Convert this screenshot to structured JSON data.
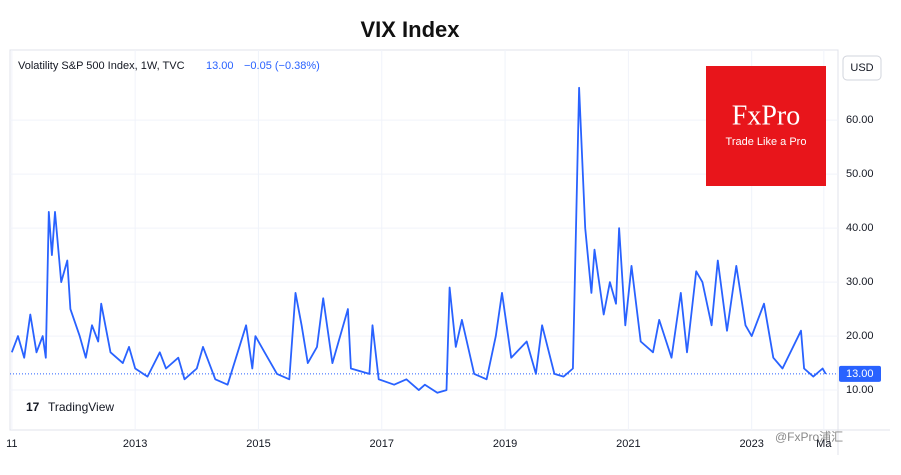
{
  "chart_data": {
    "type": "line",
    "title": "VIX Index",
    "legend_label": "Volatility S&P 500 Index, 1W, TVC",
    "legend_value": "13.00",
    "legend_change": "−0.05 (−0.38%)",
    "currency": "USD",
    "brand": "FxPro",
    "brand_tagline": "Trade Like a Pro",
    "platform": "TradingView",
    "watermark": "@FxPro浦汇",
    "x": [
      2011.0,
      2011.1,
      2011.2,
      2011.3,
      2011.4,
      2011.5,
      2011.55,
      2011.6,
      2011.65,
      2011.7,
      2011.8,
      2011.9,
      2011.95,
      2012.1,
      2012.2,
      2012.3,
      2012.4,
      2012.45,
      2012.6,
      2012.8,
      2012.9,
      2013.0,
      2013.2,
      2013.4,
      2013.5,
      2013.7,
      2013.8,
      2014.0,
      2014.1,
      2014.3,
      2014.5,
      2014.8,
      2014.9,
      2014.95,
      2015.1,
      2015.3,
      2015.5,
      2015.6,
      2015.7,
      2015.8,
      2015.95,
      2016.05,
      2016.2,
      2016.45,
      2016.5,
      2016.8,
      2016.85,
      2016.95,
      2017.2,
      2017.4,
      2017.6,
      2017.7,
      2017.9,
      2018.05,
      2018.1,
      2018.2,
      2018.3,
      2018.5,
      2018.7,
      2018.85,
      2018.95,
      2019.1,
      2019.35,
      2019.5,
      2019.6,
      2019.8,
      2019.95,
      2020.1,
      2020.15,
      2020.2,
      2020.3,
      2020.4,
      2020.45,
      2020.6,
      2020.7,
      2020.8,
      2020.85,
      2020.95,
      2021.05,
      2021.2,
      2021.4,
      2021.5,
      2021.7,
      2021.85,
      2021.95,
      2022.1,
      2022.2,
      2022.35,
      2022.45,
      2022.6,
      2022.75,
      2022.9,
      2023.0,
      2023.2,
      2023.35,
      2023.5,
      2023.8,
      2023.85,
      2024.0,
      2024.15,
      2024.2
    ],
    "series": [
      {
        "name": "Volatility S&P 500 Index",
        "color": "#2962ff",
        "values": [
          17,
          20,
          16,
          24,
          17,
          20,
          16,
          43,
          35,
          43,
          30,
          34,
          25,
          20,
          16,
          22,
          19,
          26,
          17,
          15,
          18,
          14,
          12.5,
          17,
          14,
          16,
          12,
          14,
          18,
          12,
          11,
          22,
          14,
          20,
          17,
          13,
          12,
          28,
          22,
          15,
          18,
          27,
          15,
          25,
          14,
          13,
          22,
          12,
          11,
          12,
          10,
          11,
          9.5,
          10,
          29,
          18,
          23,
          13,
          12,
          20,
          28,
          16,
          19,
          13,
          22,
          13,
          12.5,
          14,
          40,
          66,
          40,
          28,
          36,
          24,
          30,
          26,
          40,
          22,
          33,
          19,
          17,
          23,
          16,
          28,
          17,
          32,
          30,
          22,
          34,
          21,
          33,
          22,
          20,
          26,
          16,
          14,
          21,
          14,
          12.5,
          14,
          13
        ]
      }
    ],
    "last_value": 13,
    "xlim": [
      2010.97,
      2024.4
    ],
    "xticks": [
      {
        "value": 2011,
        "label": "11"
      },
      2013,
      2015,
      2017,
      2019,
      2021,
      2023,
      {
        "value": 2024.17,
        "label": "Ma"
      }
    ],
    "ylim": [
      2.6,
      73
    ],
    "yticks": [
      {
        "value": 10,
        "label": "10.00"
      },
      {
        "value": 20,
        "label": "20.00"
      },
      {
        "value": 30,
        "label": "30.00"
      },
      {
        "value": 40,
        "label": "40.00"
      },
      {
        "value": 50,
        "label": "50.00"
      },
      {
        "value": 60,
        "label": "60.00"
      }
    ],
    "grid": true
  }
}
